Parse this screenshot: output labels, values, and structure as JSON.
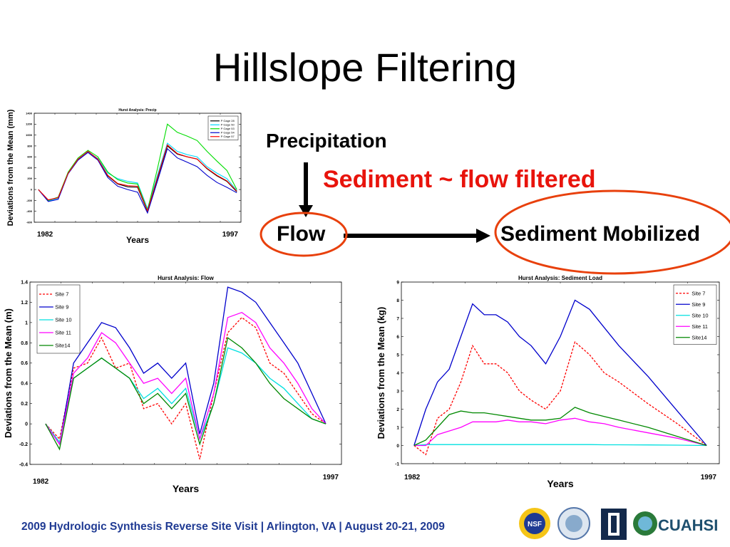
{
  "slide": {
    "title": "Hillslope Filtering",
    "precipitation_label": "Precipitation",
    "sediment_filtered_label": "Sediment ~ flow filtered",
    "flow_label": "Flow",
    "sediment_mobilized_label": "Sediment Mobilized",
    "footer": "2009 Hydrologic Synthesis Reverse Site Visit | Arlington, VA | August 20-21, 2009",
    "accent_color": "#e8140c",
    "footer_color": "#1f3a93",
    "logos": [
      "NSF",
      "CUAHSI"
    ]
  },
  "chart_data": [
    {
      "type": "line",
      "title": "Hurst Analysis: Precip",
      "ylabel": "Deviations from the Mean (mm)",
      "xlabel": "Years",
      "x_start_label": "1982",
      "x_end_label": "1997",
      "ylim": [
        -600,
        1400
      ],
      "yticks": [
        -600,
        -400,
        -200,
        0,
        200,
        400,
        600,
        800,
        1000,
        1200,
        1400
      ],
      "x": [
        0,
        0.05,
        0.1,
        0.15,
        0.2,
        0.25,
        0.3,
        0.35,
        0.4,
        0.45,
        0.5,
        0.55,
        0.6,
        0.65,
        0.7,
        0.75,
        0.8,
        0.85,
        0.9,
        0.95,
        1.0
      ],
      "legend_position": "top-right",
      "series": [
        {
          "name": "P Gage 28",
          "color": "#000000",
          "values": [
            0,
            -200,
            -150,
            300,
            550,
            700,
            560,
            250,
            100,
            50,
            40,
            -400,
            200,
            800,
            650,
            600,
            560,
            380,
            250,
            150,
            -40
          ]
        },
        {
          "name": "P Gage 50",
          "color": "#00d8ff",
          "values": [
            0,
            -210,
            -160,
            310,
            560,
            690,
            570,
            300,
            200,
            150,
            120,
            -350,
            260,
            850,
            700,
            640,
            600,
            420,
            300,
            200,
            -20
          ]
        },
        {
          "name": "P Gage 53",
          "color": "#00dd00",
          "values": [
            0,
            -200,
            -140,
            320,
            580,
            720,
            600,
            320,
            180,
            120,
            100,
            -380,
            380,
            1200,
            1050,
            980,
            900,
            700,
            520,
            350,
            0
          ]
        },
        {
          "name": "P Gage 54",
          "color": "#0000cc",
          "values": [
            0,
            -220,
            -180,
            290,
            540,
            680,
            540,
            220,
            60,
            0,
            -50,
            -430,
            150,
            750,
            580,
            500,
            420,
            260,
            130,
            40,
            -60
          ]
        },
        {
          "name": "P Gage 57",
          "color": "#ff0000",
          "values": [
            0,
            -190,
            -150,
            300,
            560,
            700,
            560,
            260,
            110,
            70,
            60,
            -390,
            220,
            820,
            660,
            600,
            560,
            390,
            260,
            160,
            -30
          ]
        }
      ]
    },
    {
      "type": "line",
      "title": "Hurst Analysis: Flow",
      "ylabel": "Deviations from the Mean (m)",
      "xlabel": "Years",
      "x_start_label": "1982",
      "x_end_label": "1997",
      "ylim": [
        -0.4,
        1.4
      ],
      "yticks": [
        -0.4,
        -0.2,
        0,
        0.2,
        0.4,
        0.6,
        0.8,
        1,
        1.2,
        1.4
      ],
      "x": [
        0,
        0.05,
        0.1,
        0.15,
        0.2,
        0.25,
        0.3,
        0.35,
        0.4,
        0.45,
        0.5,
        0.55,
        0.6,
        0.65,
        0.7,
        0.75,
        0.8,
        0.85,
        0.9,
        0.95,
        1.0
      ],
      "legend_position": "top-left",
      "series": [
        {
          "name": "Site 7",
          "color": "#ff0000",
          "dashed": true,
          "values": [
            0,
            -0.15,
            0.55,
            0.6,
            0.85,
            0.55,
            0.6,
            0.15,
            0.2,
            0.0,
            0.2,
            -0.35,
            0.3,
            0.9,
            1.05,
            0.95,
            0.6,
            0.5,
            0.3,
            0.1,
            0.0
          ]
        },
        {
          "name": "Site 9",
          "color": "#0000cc",
          "values": [
            0,
            -0.2,
            0.6,
            0.8,
            1.0,
            0.95,
            0.75,
            0.5,
            0.6,
            0.45,
            0.6,
            -0.1,
            0.4,
            1.35,
            1.3,
            1.2,
            1.0,
            0.8,
            0.6,
            0.3,
            0.0
          ]
        },
        {
          "name": "Site 10",
          "color": "#00e0e0",
          "values": [
            0,
            -0.18,
            0.45,
            0.55,
            0.65,
            0.55,
            0.45,
            0.25,
            0.35,
            0.2,
            0.35,
            -0.15,
            0.2,
            0.75,
            0.7,
            0.6,
            0.45,
            0.35,
            0.2,
            0.05,
            0.0
          ]
        },
        {
          "name": "Site 11",
          "color": "#ff00ff",
          "values": [
            0,
            -0.2,
            0.5,
            0.65,
            0.9,
            0.8,
            0.6,
            0.4,
            0.45,
            0.3,
            0.45,
            -0.15,
            0.3,
            1.05,
            1.1,
            1.0,
            0.75,
            0.6,
            0.4,
            0.15,
            0.0
          ]
        },
        {
          "name": "Site14",
          "color": "#008800",
          "values": [
            0,
            -0.25,
            0.45,
            0.55,
            0.65,
            0.55,
            0.45,
            0.2,
            0.3,
            0.15,
            0.3,
            -0.2,
            0.2,
            0.85,
            0.75,
            0.6,
            0.4,
            0.25,
            0.15,
            0.05,
            0.0
          ]
        }
      ]
    },
    {
      "type": "line",
      "title": "Hurst Analysis: Sediment Load",
      "ylabel": "Deviations from the Mean (kg)",
      "xlabel": "Years",
      "x_start_label": "1982",
      "x_end_label": "1997",
      "ylim": [
        -1,
        9
      ],
      "yticks": [
        -1,
        0,
        1,
        2,
        3,
        4,
        5,
        6,
        7,
        8,
        9
      ],
      "x": [
        0,
        0.04,
        0.08,
        0.12,
        0.16,
        0.2,
        0.24,
        0.28,
        0.32,
        0.36,
        0.4,
        0.45,
        0.5,
        0.55,
        0.6,
        0.65,
        0.7,
        0.8,
        0.9,
        1.0
      ],
      "legend_position": "top-right",
      "series": [
        {
          "name": "Site 7",
          "color": "#ff0000",
          "dashed": true,
          "values": [
            0,
            -0.5,
            1.5,
            2.0,
            3.5,
            5.5,
            4.5,
            4.5,
            4.0,
            3.0,
            2.5,
            2.0,
            3.0,
            5.7,
            5.0,
            4.0,
            3.5,
            2.3,
            1.2,
            0.0
          ]
        },
        {
          "name": "Site 9",
          "color": "#0000cc",
          "values": [
            0,
            2.0,
            3.5,
            4.2,
            6.0,
            7.8,
            7.2,
            7.2,
            6.8,
            6.0,
            5.5,
            4.5,
            6.0,
            8.0,
            7.5,
            6.5,
            5.5,
            3.8,
            1.9,
            0.0
          ]
        },
        {
          "name": "Site 10",
          "color": "#00e0e0",
          "values": [
            0,
            0.05,
            0.05,
            0.05,
            0.05,
            0.05,
            0.05,
            0.05,
            0.05,
            0.05,
            0.05,
            0.05,
            0.05,
            0.05,
            0.05,
            0.04,
            0.04,
            0.03,
            0.02,
            0.0
          ]
        },
        {
          "name": "Site 11",
          "color": "#ff00ff",
          "values": [
            0,
            0.0,
            0.6,
            0.8,
            1.0,
            1.3,
            1.3,
            1.3,
            1.4,
            1.3,
            1.3,
            1.2,
            1.4,
            1.5,
            1.3,
            1.2,
            1.0,
            0.7,
            0.4,
            0.0
          ]
        },
        {
          "name": "Site14",
          "color": "#008800",
          "values": [
            0,
            0.3,
            1.0,
            1.7,
            1.9,
            1.8,
            1.8,
            1.7,
            1.6,
            1.5,
            1.4,
            1.4,
            1.5,
            2.1,
            1.8,
            1.6,
            1.4,
            1.0,
            0.5,
            0.0
          ]
        }
      ]
    }
  ]
}
